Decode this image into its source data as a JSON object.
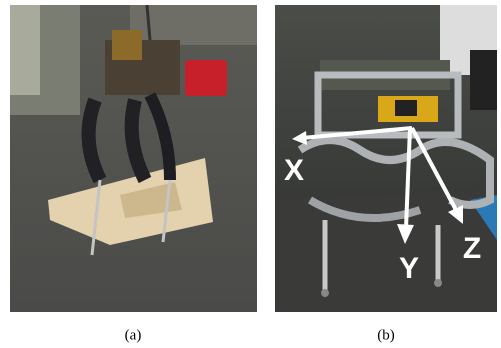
{
  "figure": {
    "panels": [
      {
        "caption": "(a)"
      },
      {
        "caption": "(b)",
        "axes": [
          "X",
          "Y",
          "Z"
        ]
      }
    ]
  }
}
